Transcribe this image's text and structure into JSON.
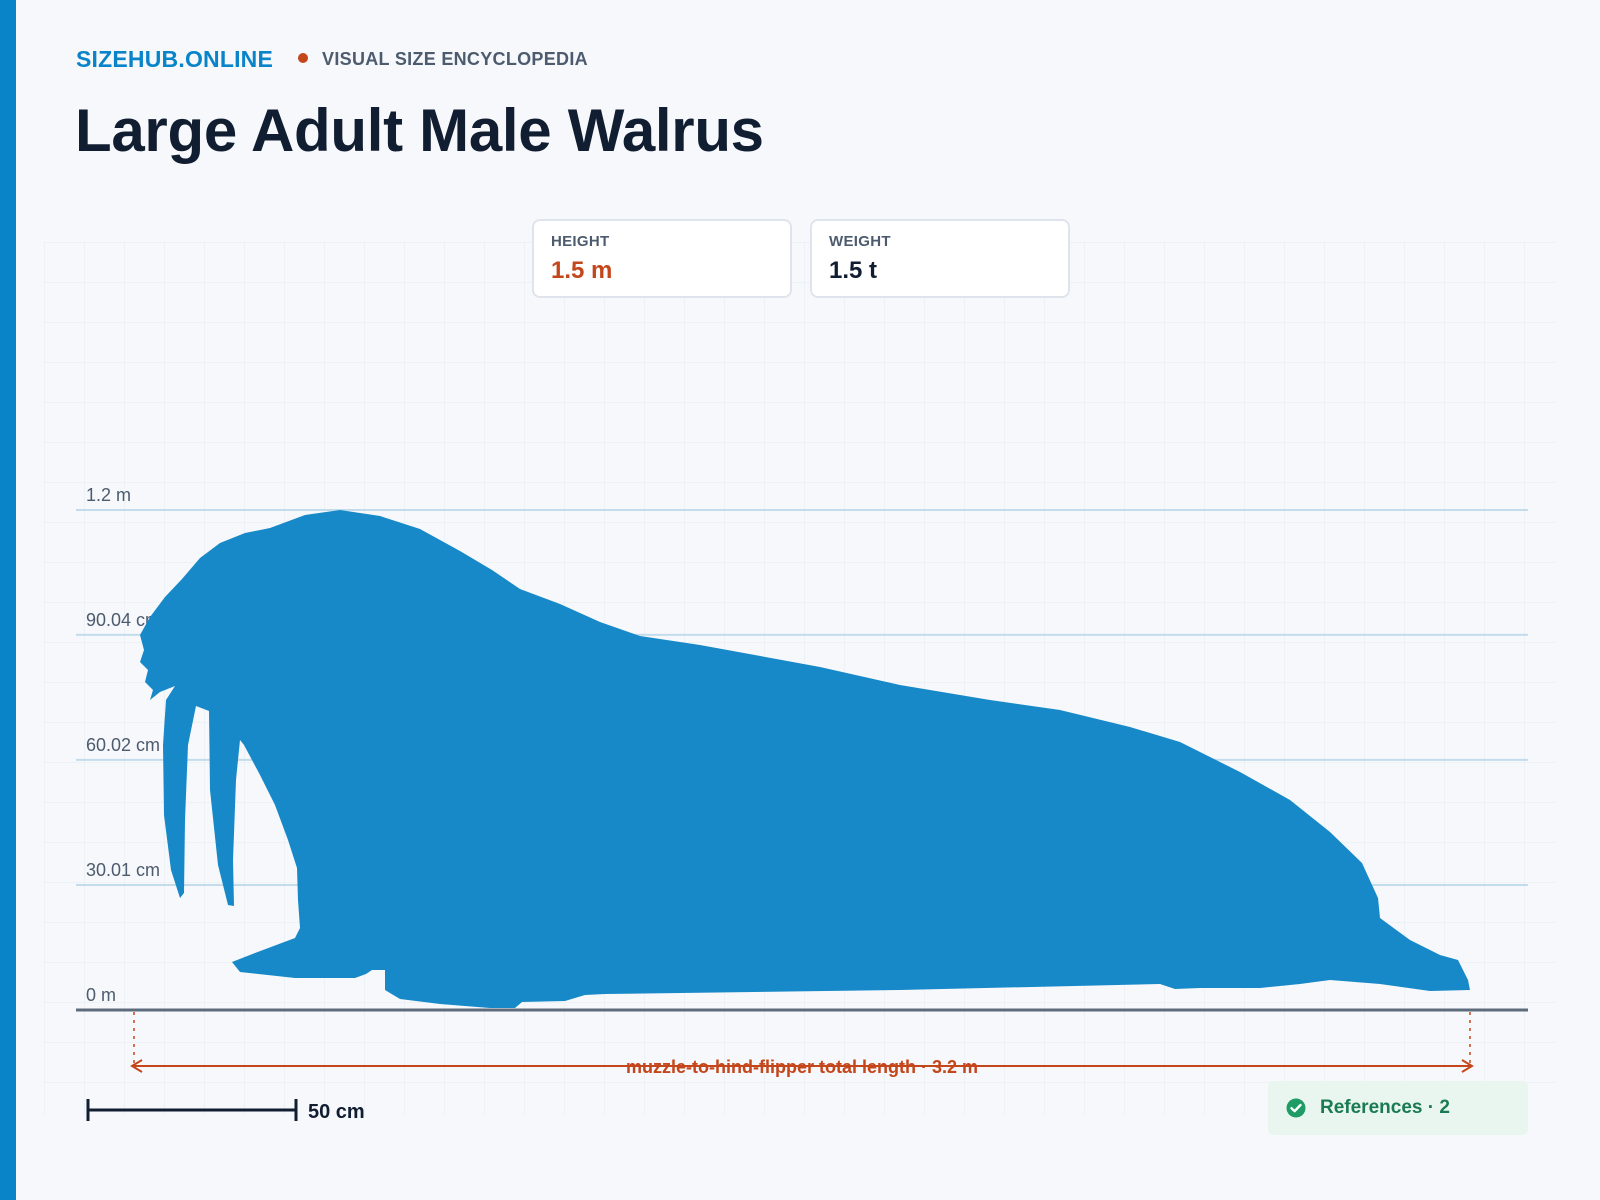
{
  "brand": {
    "name": "SIZEHUB.ONLINE",
    "tagline": "VISUAL SIZE ENCYCLOPEDIA"
  },
  "title": "Large Adult Male Walrus",
  "stats": [
    {
      "label": "HEIGHT",
      "value": "1.5 m",
      "color": "#c4461b"
    },
    {
      "label": "WEIGHT",
      "value": "1.5 t",
      "color": "#111d30"
    }
  ],
  "axis": {
    "ticks": [
      {
        "label": "0 m",
        "value_cm": 0
      },
      {
        "label": "30.01 cm",
        "value_cm": 30.01
      },
      {
        "label": "60.02 cm",
        "value_cm": 60.02
      },
      {
        "label": "90.04 cm",
        "value_cm": 90.04
      },
      {
        "label": "1.2 m",
        "value_cm": 120
      }
    ]
  },
  "subject": {
    "name": "walrus-silhouette",
    "color": "#1789c8"
  },
  "dimension": {
    "label": "muzzle-to-hind-flipper total length · 3.2 m",
    "value_m": 3.2,
    "color": "#c4461b"
  },
  "scale_bar": {
    "label": "50 cm",
    "value_cm": 50
  },
  "references": {
    "label": "References · 2",
    "icon": "check-circle-icon"
  },
  "colors": {
    "accent": "#0a84c9",
    "highlight": "#c4461b",
    "text": "#111d30",
    "success": "#1a7a52"
  }
}
